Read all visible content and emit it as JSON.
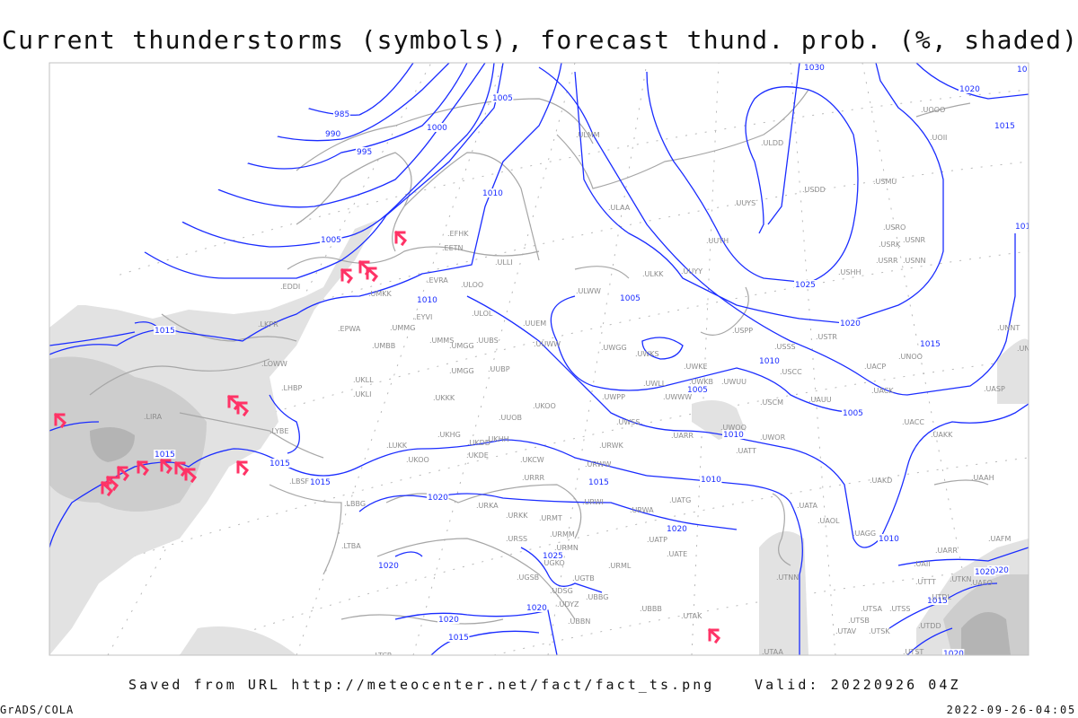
{
  "title": "Current thunderstorms (symbols), forecast thund. prob. (%, shaded)",
  "footer": {
    "saved_from": "Saved from URL http://meteocenter.net/fact/fact_ts.png",
    "valid": "Valid: 20220926 04Z",
    "software": "GrADS/COLA",
    "generated": "2022-09-26-04:05"
  },
  "colors": {
    "isobar": "#1a2cff",
    "thunderstorm_symbol": "#ff3366",
    "coastline": "#a6a6a6",
    "shading_low": "#e2e2e2",
    "shading_mid": "#cdcdcd",
    "shading_high": "#b4b4b4",
    "station_label": "#8c8c8c"
  },
  "legend": {
    "thunderstorm_symbol_icon": "thunderstorm-symbol",
    "shaded": "forecast thunderstorm probability (%)"
  },
  "isobar_labels": [
    "985",
    "990",
    "995",
    "1000",
    "1005",
    "1010",
    "1005",
    "1010",
    "1015",
    "1015",
    "1015",
    "1015",
    "1020",
    "1020",
    "1020",
    "1025",
    "1020",
    "1015",
    "1005",
    "1010",
    "1005",
    "1010",
    "1025",
    "1020",
    "1015",
    "1005",
    "1010",
    "1030",
    "1020",
    "1015",
    "101",
    "1010",
    "1020",
    "1020",
    "1015",
    "1020",
    "1015",
    "1020",
    "10"
  ],
  "stations": [
    "EDDI",
    "LKPR",
    "LOWW",
    "LHBP",
    "LIRA",
    "LYBE",
    "LBSF",
    "LBBG",
    "LTBA",
    "LTCR",
    "EPWA",
    "UMKK",
    "EVRA",
    "EETN",
    "EFHK",
    "ULLI",
    "ULOO",
    "EYVI",
    "UMMG",
    "UMMS",
    "UMGG",
    "ULOL",
    "UUBS",
    "UUEM",
    "UUWW",
    "UMBB",
    "UMGG",
    "UUBP",
    "UKLL",
    "UKLI",
    "UKKK",
    "UKOO",
    "UUOB",
    "UKHH",
    "UKDD",
    "UKHG",
    "UKDE",
    "UKOO",
    "LUKK",
    "UKCW",
    "URRR",
    "URKA",
    "URKK",
    "URMT",
    "URMM",
    "URMN",
    "URSS",
    "UGKO",
    "UGSB",
    "UDSG",
    "UDYZ",
    "UBBN",
    "UBBG",
    "UGTB",
    "UBBB",
    "URML",
    "UATE",
    "UATP",
    "URWA",
    "URWI",
    "URWW",
    "URWK",
    "UWSS",
    "UATG",
    "UATA",
    "UAOL",
    "UAGG",
    "UAKD",
    "UACC",
    "UAKK",
    "UAAH",
    "UAFM",
    "UARR",
    "UAII",
    "UTTT",
    "UTKN",
    "UAFO",
    "UTDL",
    "UTSA",
    "UTSB",
    "UTSS",
    "UTAV",
    "UTSK",
    "UTDD",
    "UTST",
    "UTAA",
    "UTAK",
    "UTNN",
    "UATT",
    "UWOR",
    "UWOO",
    "UARR",
    "UWPP",
    "UWWW",
    "UWLL",
    "UWKB",
    "UWUU",
    "UWKE",
    "UWKS",
    "UWGG",
    "USCC",
    "USSS",
    "USPP",
    "USTR",
    "UAUU",
    "USCM",
    "UASP",
    "UACK",
    "UACP",
    "UNOO",
    "UNBB",
    "UNNT",
    "USHH",
    "USRR",
    "USRK",
    "USRO",
    "USNR",
    "USNN",
    "USMU",
    "USDD",
    "UUYS",
    "UUYH",
    "UUYY",
    "ULKK",
    "ULWW",
    "ULAA",
    "ULMM",
    "ULDD",
    "UOOO",
    "UOII"
  ],
  "thunderstorm_count": 16
}
